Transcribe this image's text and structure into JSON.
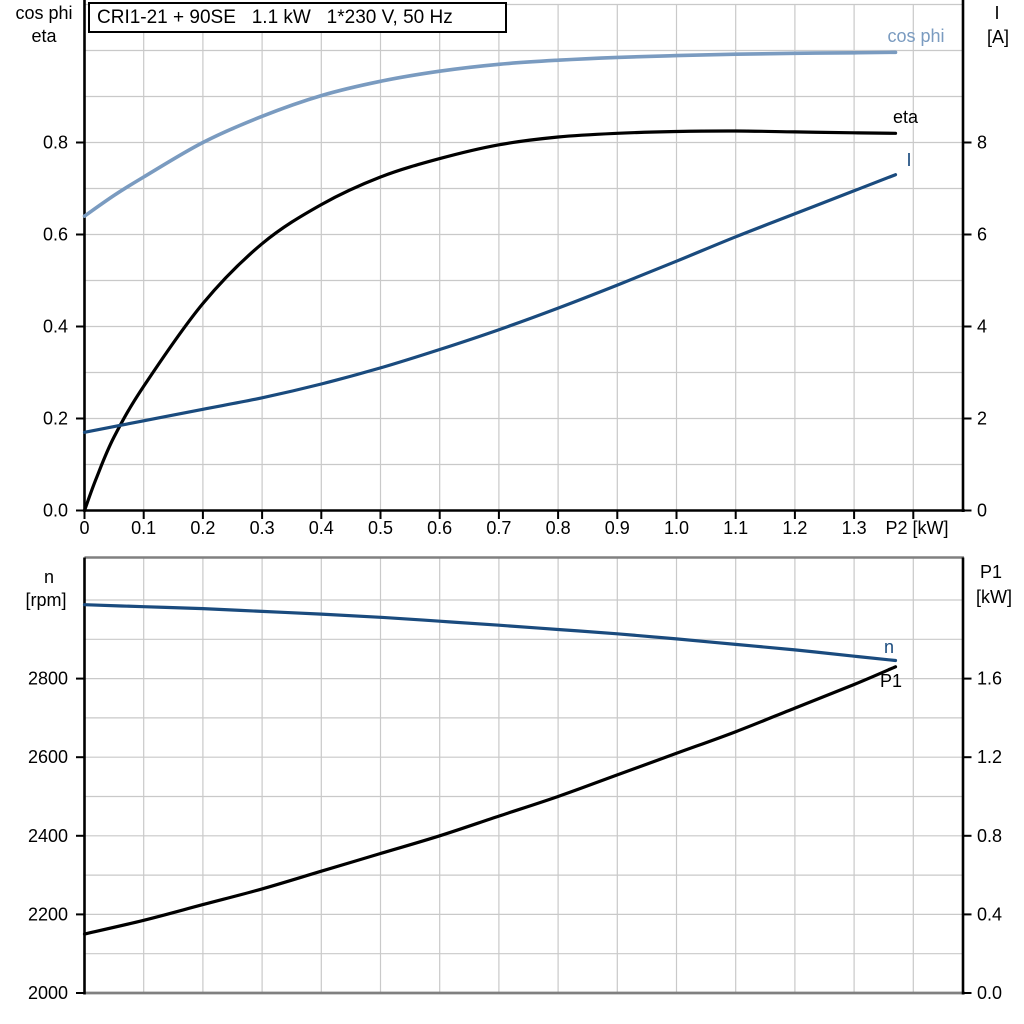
{
  "title_box": {
    "text": "CRI1-21 + 90SE   1.1 kW   1*230 V, 50 Hz"
  },
  "colors": {
    "light_blue": "#7A9BC0",
    "dark_blue": "#1A4B7E",
    "black": "#000000",
    "grid": "#C9C9C9",
    "frame_gray": "#808080",
    "background": "#FFFFFF"
  },
  "chart_data": [
    {
      "id": "motor-curves",
      "type": "line",
      "x_axis": {
        "label": "P2 [kW]",
        "ticks": [
          0,
          0.1,
          0.2,
          0.3,
          0.4,
          0.5,
          0.6,
          0.7,
          0.8,
          0.9,
          1.0,
          1.1,
          1.2,
          1.3
        ],
        "tick_labels": [
          "0",
          "0.1",
          "0.2",
          "0.3",
          "0.4",
          "0.5",
          "0.6",
          "0.7",
          "0.8",
          "0.9",
          "1.0",
          "1.1",
          "1.2",
          "1.3"
        ],
        "range": [
          0,
          1.485
        ],
        "grid_step": 0.1
      },
      "y_left": {
        "title_lines": [
          "cos phi",
          "eta"
        ],
        "ticks": [
          0,
          0.2,
          0.4,
          0.6,
          0.8
        ],
        "tick_labels": [
          "0.0",
          "0.2",
          "0.4",
          "0.6",
          "0.8"
        ],
        "range": [
          0,
          1.1
        ],
        "grid_step": 0.1
      },
      "y_right": {
        "title_lines": [
          "I",
          "[A]"
        ],
        "ticks": [
          0,
          2,
          4,
          6,
          8
        ],
        "tick_labels": [
          "0",
          "2",
          "4",
          "6",
          "8"
        ],
        "range": [
          0,
          11
        ]
      },
      "grid": true,
      "legend_position": "curve-end-labels",
      "series": [
        {
          "name": "cos phi",
          "axis": "left",
          "color_key": "light_blue",
          "x": [
            0,
            0.05,
            0.1,
            0.2,
            0.3,
            0.4,
            0.5,
            0.6,
            0.7,
            0.8,
            0.9,
            1.0,
            1.1,
            1.2,
            1.3,
            1.37
          ],
          "values": [
            0.64,
            0.685,
            0.725,
            0.8,
            0.857,
            0.902,
            0.933,
            0.955,
            0.97,
            0.979,
            0.985,
            0.989,
            0.992,
            0.994,
            0.995,
            0.996
          ]
        },
        {
          "name": "eta",
          "axis": "left",
          "color_key": "black",
          "x": [
            0,
            0.02,
            0.05,
            0.1,
            0.2,
            0.3,
            0.4,
            0.5,
            0.6,
            0.7,
            0.8,
            0.9,
            1.0,
            1.1,
            1.2,
            1.3,
            1.37
          ],
          "values": [
            0,
            0.07,
            0.16,
            0.27,
            0.45,
            0.58,
            0.665,
            0.725,
            0.765,
            0.795,
            0.812,
            0.82,
            0.824,
            0.825,
            0.823,
            0.821,
            0.82
          ]
        },
        {
          "name": "I",
          "axis": "right",
          "color_key": "dark_blue",
          "x": [
            0,
            0.1,
            0.2,
            0.3,
            0.4,
            0.5,
            0.6,
            0.7,
            0.8,
            0.9,
            1.0,
            1.1,
            1.2,
            1.3,
            1.37
          ],
          "values": [
            1.7,
            1.95,
            2.2,
            2.45,
            2.75,
            3.1,
            3.5,
            3.93,
            4.4,
            4.9,
            5.42,
            5.95,
            6.45,
            6.95,
            7.3
          ]
        }
      ]
    },
    {
      "id": "speed-power-curves",
      "type": "line",
      "x_axis": {
        "label": "",
        "ticks": [],
        "tick_labels": [],
        "range": [
          0,
          1.485
        ],
        "grid_step": 0.1
      },
      "y_left": {
        "title_lines": [
          "n",
          "[rpm]"
        ],
        "ticks": [
          2000,
          2200,
          2400,
          2600,
          2800
        ],
        "tick_labels": [
          "2000",
          "2200",
          "2400",
          "2600",
          "2800"
        ],
        "range": [
          2000,
          3110
        ],
        "grid_step": 100
      },
      "y_right": {
        "title_lines": [
          "P1",
          "[kW]"
        ],
        "ticks": [
          0,
          0.4,
          0.8,
          1.2,
          1.6
        ],
        "tick_labels": [
          "0.0",
          "0.4",
          "0.8",
          "1.2",
          "1.6"
        ],
        "range": [
          0,
          2.22
        ]
      },
      "grid": true,
      "legend_position": "curve-end-labels",
      "series": [
        {
          "name": "n",
          "axis": "left",
          "color_key": "dark_blue",
          "x": [
            0,
            0.1,
            0.2,
            0.3,
            0.4,
            0.5,
            0.6,
            0.7,
            0.8,
            0.9,
            1.0,
            1.1,
            1.2,
            1.3,
            1.37
          ],
          "values": [
            2988,
            2983,
            2978,
            2971,
            2964,
            2956,
            2946,
            2936,
            2925,
            2914,
            2901,
            2887,
            2873,
            2857,
            2846
          ]
        },
        {
          "name": "P1",
          "axis": "right",
          "color_key": "black",
          "x": [
            0,
            0.1,
            0.2,
            0.3,
            0.4,
            0.5,
            0.6,
            0.7,
            0.8,
            0.9,
            1.0,
            1.1,
            1.2,
            1.3,
            1.37
          ],
          "values": [
            0.3,
            0.37,
            0.45,
            0.53,
            0.62,
            0.71,
            0.8,
            0.9,
            1.0,
            1.11,
            1.22,
            1.33,
            1.45,
            1.57,
            1.66
          ]
        }
      ]
    }
  ]
}
